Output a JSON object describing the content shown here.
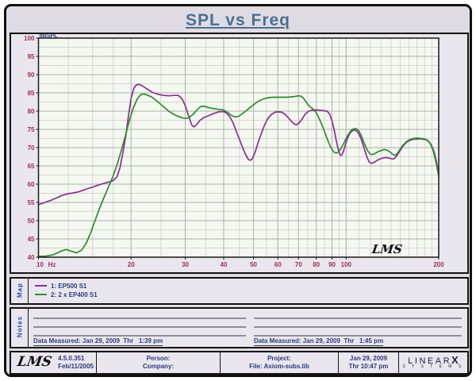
{
  "header": {
    "title": "SPL vs Freq"
  },
  "chart_data": {
    "type": "line",
    "title": "SPL vs Freq",
    "ylabel": "dBSPL",
    "x_unit": "Hz",
    "x_scale": "log",
    "xlim": [
      10,
      200
    ],
    "ylim": [
      40,
      100
    ],
    "x_ticks": [
      10,
      20,
      30,
      40,
      50,
      60,
      70,
      80,
      90,
      100,
      200
    ],
    "x_minor": [
      12.5,
      15,
      17.5,
      25,
      35,
      45,
      55,
      65,
      75,
      85,
      95,
      110,
      120,
      130,
      140,
      150,
      160,
      170,
      180,
      190
    ],
    "y_tick_step": 5,
    "y_minor_step": 2.5,
    "grid": true,
    "legend_position": "map-panel-below",
    "watermark": "LMS",
    "colors": {
      "plot_bg": "#F5F7F1",
      "grid_minor": "#D4D8D0",
      "grid_major": "#ACB0AA",
      "plot_border": "#1A1A1A",
      "tick_label": "#A02C52",
      "axis_label": "#2A3A7E"
    },
    "series": [
      {
        "name": "1: EP500 S1",
        "color": "#8B2F8F",
        "points": [
          [
            10,
            54.4
          ],
          [
            10.5,
            55
          ],
          [
            11,
            55.6
          ],
          [
            11.5,
            56.3
          ],
          [
            12,
            57
          ],
          [
            12.5,
            57.4
          ],
          [
            13,
            57.6
          ],
          [
            13.5,
            57.9
          ],
          [
            14,
            58.4
          ],
          [
            14.5,
            58.8
          ],
          [
            15,
            59.2
          ],
          [
            15.5,
            59.6
          ],
          [
            16,
            60
          ],
          [
            16.5,
            60.3
          ],
          [
            17,
            60.6
          ],
          [
            17.5,
            61
          ],
          [
            18,
            62
          ],
          [
            18.4,
            64.5
          ],
          [
            18.8,
            68.5
          ],
          [
            19.2,
            73
          ],
          [
            19.6,
            78.5
          ],
          [
            20,
            83.5
          ],
          [
            20.4,
            86.2
          ],
          [
            20.8,
            87.2
          ],
          [
            21.3,
            87.3
          ],
          [
            21.8,
            86.9
          ],
          [
            22.5,
            86.1
          ],
          [
            23.5,
            85.1
          ],
          [
            24.5,
            84.6
          ],
          [
            25.5,
            84.3
          ],
          [
            26.5,
            84.2
          ],
          [
            27.5,
            84.3
          ],
          [
            28.5,
            84.3
          ],
          [
            29.3,
            83.4
          ],
          [
            30,
            81.5
          ],
          [
            30.8,
            78.6
          ],
          [
            31.5,
            76.2
          ],
          [
            32,
            75.7
          ],
          [
            32.6,
            76.2
          ],
          [
            33.4,
            77.4
          ],
          [
            34.4,
            78.2
          ],
          [
            35.6,
            78.7
          ],
          [
            37,
            79.3
          ],
          [
            38.5,
            79.8
          ],
          [
            40,
            79.9
          ],
          [
            41,
            79.4
          ],
          [
            42,
            78.3
          ],
          [
            43,
            76.6
          ],
          [
            44,
            74.4
          ],
          [
            45,
            72.3
          ],
          [
            46,
            70.2
          ],
          [
            47,
            68.3
          ],
          [
            48,
            66.9
          ],
          [
            48.8,
            66.5
          ],
          [
            49.6,
            67
          ],
          [
            50.6,
            68.7
          ],
          [
            51.6,
            71
          ],
          [
            52.8,
            73.5
          ],
          [
            54.2,
            76
          ],
          [
            55.6,
            77.9
          ],
          [
            57,
            79
          ],
          [
            58.6,
            79.7
          ],
          [
            60.2,
            79.8
          ],
          [
            61.8,
            79.7
          ],
          [
            63.4,
            79.1
          ],
          [
            65,
            78.1
          ],
          [
            66.6,
            77.1
          ],
          [
            68,
            76.4
          ],
          [
            69.2,
            76.3
          ],
          [
            70.4,
            76.8
          ],
          [
            72,
            77.9
          ],
          [
            73.6,
            79.1
          ],
          [
            75.2,
            79.9
          ],
          [
            77,
            80.2
          ],
          [
            79,
            80.3
          ],
          [
            81,
            80.3
          ],
          [
            83,
            80.2
          ],
          [
            85,
            80.1
          ],
          [
            87,
            79.9
          ],
          [
            88.5,
            79.1
          ],
          [
            90,
            77.3
          ],
          [
            91.5,
            74.8
          ],
          [
            93,
            71.8
          ],
          [
            94.5,
            69.2
          ],
          [
            95.7,
            67.9
          ],
          [
            96.7,
            67.9
          ],
          [
            98,
            69
          ],
          [
            99.5,
            70.8
          ],
          [
            101,
            72.5
          ],
          [
            103,
            74
          ],
          [
            105,
            74.7
          ],
          [
            107,
            74.8
          ],
          [
            109,
            74.3
          ],
          [
            111,
            73.1
          ],
          [
            113,
            71.3
          ],
          [
            115,
            69.3
          ],
          [
            117,
            67.3
          ],
          [
            119,
            66
          ],
          [
            121,
            65.7
          ],
          [
            123,
            65.9
          ],
          [
            125.5,
            66.4
          ],
          [
            128,
            66.8
          ],
          [
            131,
            67.1
          ],
          [
            134,
            67.3
          ],
          [
            137,
            67.2
          ],
          [
            140,
            67
          ],
          [
            143,
            66.9
          ],
          [
            146,
            67.7
          ],
          [
            149,
            68.9
          ],
          [
            153,
            70.4
          ],
          [
            157,
            71.4
          ],
          [
            161,
            72
          ],
          [
            166,
            72.3
          ],
          [
            171,
            72.4
          ],
          [
            176,
            72.4
          ],
          [
            181,
            72.2
          ],
          [
            185,
            71.8
          ],
          [
            189,
            70.8
          ],
          [
            193,
            69
          ],
          [
            196.5,
            66.3
          ],
          [
            200,
            62.8
          ]
        ]
      },
      {
        "name": "2: 2 x EP400 S1",
        "color": "#2E8B2E",
        "points": [
          [
            10,
            40.2
          ],
          [
            10.6,
            40.3
          ],
          [
            11.2,
            40.7
          ],
          [
            11.8,
            41.6
          ],
          [
            12.3,
            42.1
          ],
          [
            12.8,
            41.6
          ],
          [
            13.3,
            41.2
          ],
          [
            13.8,
            41.9
          ],
          [
            14.3,
            43.8
          ],
          [
            14.8,
            46.8
          ],
          [
            15.3,
            50.2
          ],
          [
            15.8,
            53.4
          ],
          [
            16.3,
            56.2
          ],
          [
            16.8,
            58.8
          ],
          [
            17.4,
            61.8
          ],
          [
            18,
            65.3
          ],
          [
            18.6,
            69.3
          ],
          [
            19.2,
            73.5
          ],
          [
            19.8,
            77.8
          ],
          [
            20.4,
            81.2
          ],
          [
            21,
            83.5
          ],
          [
            21.5,
            84.5
          ],
          [
            22,
            84.7
          ],
          [
            22.6,
            84.4
          ],
          [
            23.4,
            83.8
          ],
          [
            24.4,
            82.6
          ],
          [
            25.4,
            81.3
          ],
          [
            26.4,
            80.1
          ],
          [
            27.4,
            79.2
          ],
          [
            28.4,
            78.6
          ],
          [
            29.2,
            78.2
          ],
          [
            30,
            78
          ],
          [
            30.8,
            78.2
          ],
          [
            31.8,
            79.1
          ],
          [
            32.8,
            80.4
          ],
          [
            33.7,
            81.3
          ],
          [
            34.6,
            81.3
          ],
          [
            35.6,
            81
          ],
          [
            37,
            80.7
          ],
          [
            38.5,
            80.5
          ],
          [
            40,
            80.3
          ],
          [
            41.2,
            79.6
          ],
          [
            42.4,
            78.8
          ],
          [
            43.6,
            78.4
          ],
          [
            44.8,
            78.6
          ],
          [
            46,
            79.3
          ],
          [
            47.2,
            80
          ],
          [
            48.4,
            80.8
          ],
          [
            49.6,
            81.5
          ],
          [
            51,
            82.3
          ],
          [
            52.4,
            82.9
          ],
          [
            54,
            83.4
          ],
          [
            56,
            83.7
          ],
          [
            58,
            83.8
          ],
          [
            60,
            83.8
          ],
          [
            62,
            83.8
          ],
          [
            64,
            83.8
          ],
          [
            66,
            83.9
          ],
          [
            68,
            84
          ],
          [
            70,
            84.2
          ],
          [
            71.2,
            84.1
          ],
          [
            72.4,
            83.7
          ],
          [
            73.6,
            82.9
          ],
          [
            75,
            81.9
          ],
          [
            76.5,
            81.1
          ],
          [
            78,
            80.6
          ],
          [
            79.5,
            79.9
          ],
          [
            81,
            78.7
          ],
          [
            83,
            76.7
          ],
          [
            85,
            74.5
          ],
          [
            87,
            72.2
          ],
          [
            89,
            70.2
          ],
          [
            91,
            68.9
          ],
          [
            92.8,
            68.5
          ],
          [
            94.4,
            68.8
          ],
          [
            96,
            69.6
          ],
          [
            98,
            71
          ],
          [
            100,
            72.5
          ],
          [
            102,
            73.8
          ],
          [
            104,
            74.8
          ],
          [
            106,
            75.2
          ],
          [
            108,
            75.2
          ],
          [
            110,
            74.6
          ],
          [
            112,
            73.3
          ],
          [
            114,
            71.6
          ],
          [
            116,
            70.1
          ],
          [
            118,
            68.9
          ],
          [
            120,
            68.2
          ],
          [
            122,
            68.1
          ],
          [
            124,
            68.4
          ],
          [
            127,
            68.9
          ],
          [
            130,
            69.2
          ],
          [
            133,
            69.5
          ],
          [
            136,
            69.3
          ],
          [
            139,
            68.8
          ],
          [
            142,
            68.1
          ],
          [
            145,
            67.9
          ],
          [
            148,
            68.9
          ],
          [
            152,
            70.4
          ],
          [
            156,
            71.4
          ],
          [
            160,
            72.1
          ],
          [
            165,
            72.5
          ],
          [
            170,
            72.6
          ],
          [
            175,
            72.5
          ],
          [
            180,
            72.4
          ],
          [
            184,
            72
          ],
          [
            188,
            71
          ],
          [
            192,
            69.1
          ],
          [
            196,
            66
          ],
          [
            200,
            62.2
          ]
        ]
      }
    ]
  },
  "map": {
    "label": "Map"
  },
  "notes": {
    "label": "Notes",
    "left_measured": "Data Measured: Jan 29, 2009  Thr   1:39 pm",
    "right_measured": "Data Measured: Jan 29, 2009  Thr   1:45 pm"
  },
  "footer": {
    "logo": "LMS",
    "version": "4.5.0.351",
    "version_date": "Feb/11/2005",
    "person_label": "Person:",
    "company_label": "Company:",
    "project_label": "Project:",
    "file_label": "File: Axiom-subs.lib",
    "date": "Jan 29, 2009",
    "time": "Thr 10:47 pm",
    "brand": {
      "name": "LINEAR",
      "x": "X",
      "sub": "S Y S T E M S"
    }
  }
}
